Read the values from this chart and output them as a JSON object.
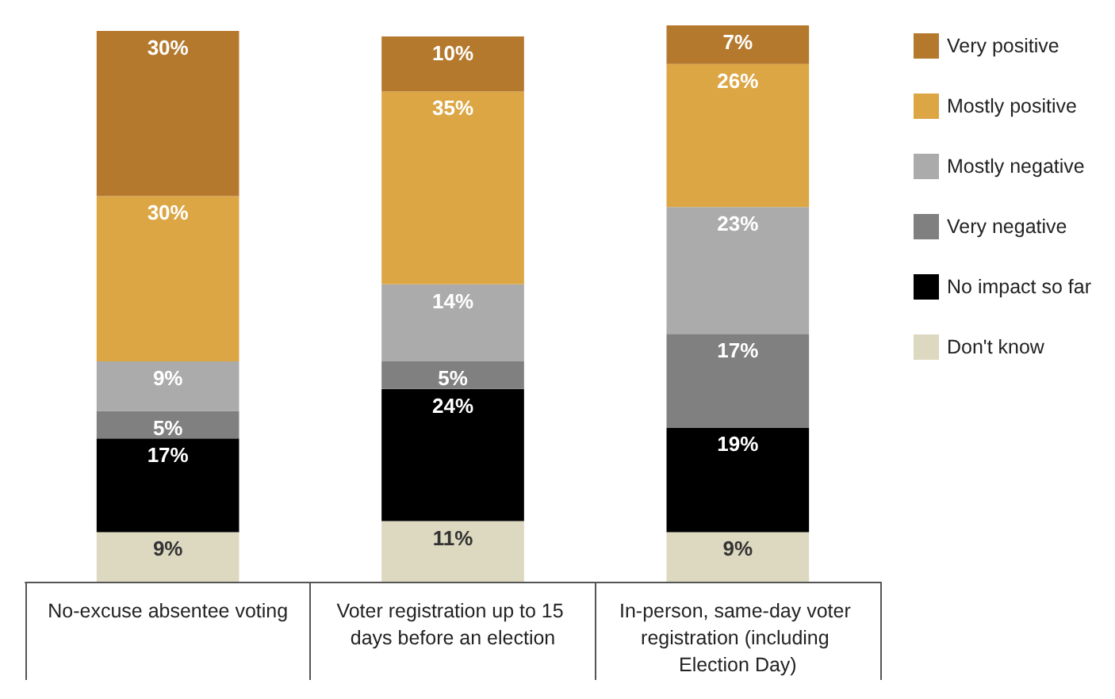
{
  "chart_data": {
    "type": "bar",
    "stacked": true,
    "legend": "right",
    "categories": [
      "No-excuse absentee voting",
      "Voter registration up to 15 days before an election",
      "In-person, same-day voter registration (including Election Day)"
    ],
    "series": [
      {
        "name": "Don't know",
        "color": "#ddd8c0",
        "values": [
          9,
          11,
          9
        ],
        "value_labels": [
          "9%",
          "11%",
          "9%"
        ]
      },
      {
        "name": "No impact so far",
        "color": "#000000",
        "values": [
          17,
          24,
          19
        ],
        "value_labels": [
          "17%",
          "24%",
          "19%"
        ]
      },
      {
        "name": "Very negative",
        "color": "#808080",
        "values": [
          5,
          5,
          17
        ],
        "value_labels": [
          "5%",
          "5%",
          "17%"
        ]
      },
      {
        "name": "Mostly negative",
        "color": "#ababab",
        "values": [
          9,
          14,
          23
        ],
        "value_labels": [
          "9%",
          "14%",
          "23%"
        ]
      },
      {
        "name": "Mostly positive",
        "color": "#dca644",
        "values": [
          30,
          35,
          26
        ],
        "value_labels": [
          "30%",
          "35%",
          "26%"
        ]
      },
      {
        "name": "Very positive",
        "color": "#b5792e",
        "values": [
          30,
          10,
          7
        ],
        "value_labels": [
          "30%",
          "10%",
          "7%"
        ]
      }
    ]
  }
}
